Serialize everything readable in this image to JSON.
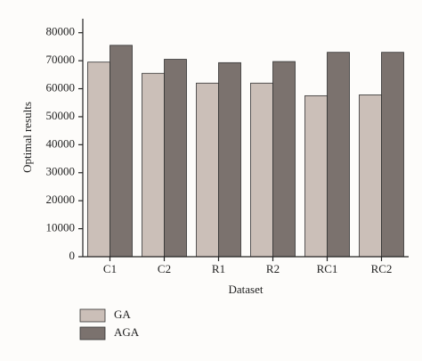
{
  "chart_data": {
    "type": "bar",
    "x_label": "Dataset",
    "y_label": "Optimal results",
    "categories": [
      "C1",
      "C2",
      "R1",
      "R2",
      "RC1",
      "RC2"
    ],
    "series": [
      {
        "name": "GA",
        "color": "#cbbfb8",
        "values": [
          69500,
          65500,
          62000,
          62000,
          57500,
          57800
        ]
      },
      {
        "name": "AGA",
        "color": "#7b726e",
        "values": [
          75500,
          70500,
          69300,
          69700,
          73000,
          73000
        ]
      }
    ],
    "ylim": [
      0,
      85000
    ],
    "yticks": [
      0,
      10000,
      20000,
      30000,
      40000,
      50000,
      60000,
      70000,
      80000
    ]
  }
}
